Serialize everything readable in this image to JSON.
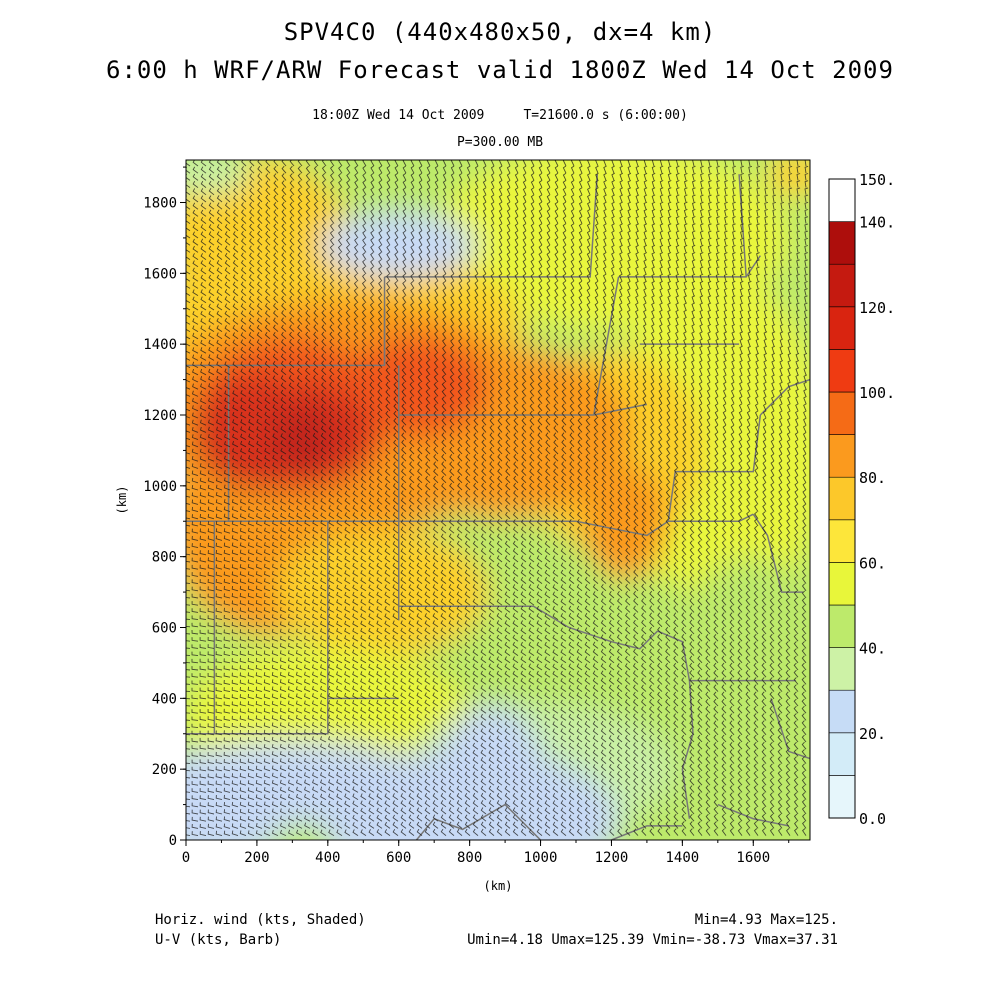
{
  "title": {
    "line1": "SPV4C0 (440x480x50, dx=4 km)",
    "line2": "6:00 h WRF/ARW Forecast valid 1800Z Wed 14 Oct 2009"
  },
  "subtitle": {
    "valid_time": "18:00Z Wed 14 Oct 2009     T=21600.0 s (6:00:00)",
    "level": "P=300.00 MB"
  },
  "axes": {
    "x_label": "(km)",
    "y_label": "(km)",
    "x_ticks": [
      "0",
      "200",
      "400",
      "600",
      "800",
      "1000",
      "1200",
      "1400",
      "1600"
    ],
    "y_ticks": [
      "0",
      "200",
      "400",
      "600",
      "800",
      "1000",
      "1200",
      "1400",
      "1600",
      "1800"
    ],
    "x_range_km": [
      0,
      1760
    ],
    "y_range_km": [
      0,
      1920
    ]
  },
  "colorbar": {
    "labels": [
      "150.",
      "140.",
      "120.",
      "100.",
      "80.",
      "60.",
      "40.",
      "20.",
      "0.0"
    ],
    "colors_bottom_to_top": [
      "#e6f6fb",
      "#d3ecf8",
      "#c6dcf6",
      "#cdf2a6",
      "#bdea6b",
      "#e8f63a",
      "#fde63a",
      "#fcc82a",
      "#fb9a1e",
      "#f56b16",
      "#ef3b12",
      "#d92410",
      "#c51a10",
      "#ad0e0c"
    ],
    "range": [
      0,
      150
    ],
    "interval": 10
  },
  "field_colors": {
    "light_blue": "#c8daf6",
    "light_green": "#c9f0a4",
    "green": "#bdea6b",
    "yellow": "#e9f63c",
    "gold": "#fcd02c",
    "orange": "#fb9a1e",
    "red_orange": "#f2561a",
    "red": "#d8321a",
    "dark_red": "#c2281c",
    "state_lines": "#777777",
    "barbs": "#1a1a1a"
  },
  "footer": {
    "field_label": "Horiz. wind (kts, Shaded)",
    "barb_label": "U-V (kts, Barb)",
    "minmax": "Min=4.93 Max=125.",
    "uv_stats": "Umin=4.18 Umax=125.39 Vmin=-38.73 Vmax=37.31"
  }
}
